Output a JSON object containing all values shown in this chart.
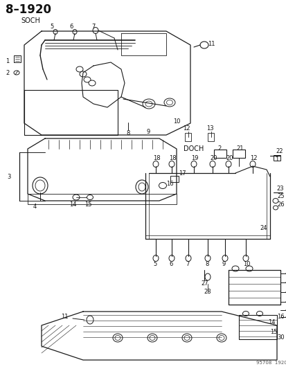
{
  "title": "8–1920",
  "subtitle_soch": "SOCH",
  "subtitle_doch": "DOCH",
  "watermark": "95708  1920",
  "bg_color": "#ffffff",
  "lc": "#1a1a1a",
  "tc": "#111111",
  "fig_width": 4.14,
  "fig_height": 5.33,
  "dpi": 100
}
